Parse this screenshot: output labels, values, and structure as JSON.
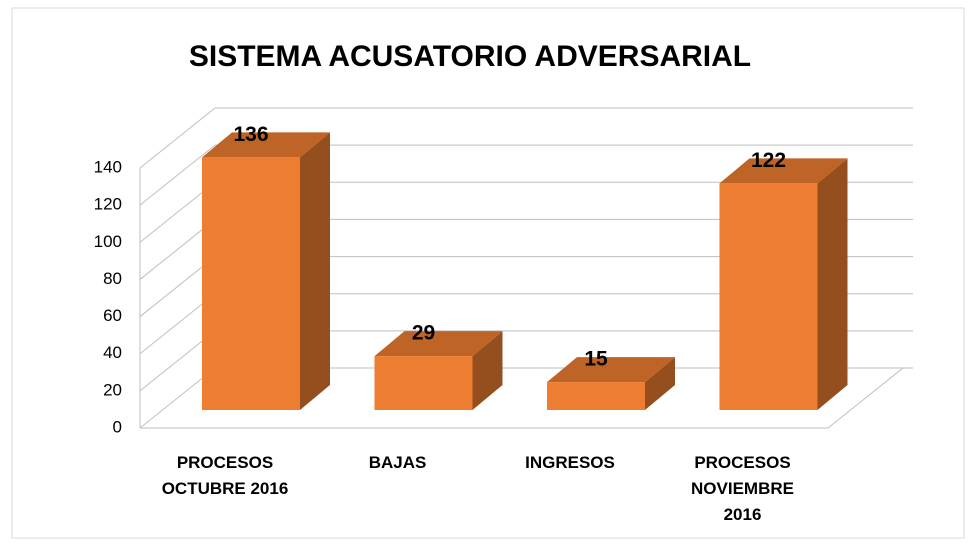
{
  "chart_data": {
    "type": "bar3d",
    "title": "SISTEMA ACUSATORIO ADVERSARIAL",
    "categories": [
      "PROCESOS OCTUBRE 2016",
      "BAJAS",
      "INGRESOS",
      "PROCESOS NOVIEMBRE 2016"
    ],
    "values": [
      136,
      29,
      15,
      122
    ],
    "color": "#ed7d31",
    "ylim": [
      0,
      140
    ],
    "yticks": [
      0,
      20,
      40,
      60,
      80,
      100,
      120,
      140
    ],
    "grid": true
  }
}
